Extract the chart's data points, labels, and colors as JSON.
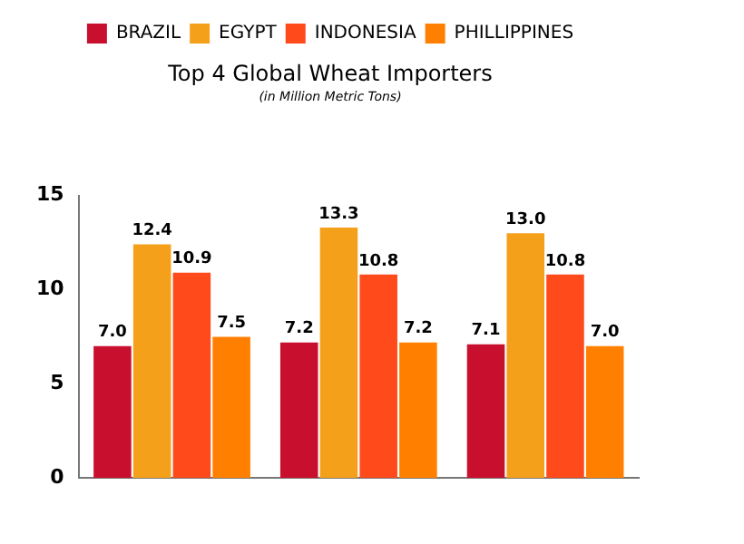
{
  "chart_data": {
    "type": "bar",
    "title": "Top 4 Global Wheat Importers",
    "subtitle": "(in Million Metric Tons)",
    "categories": [
      null,
      null,
      null
    ],
    "series": [
      {
        "name": "BRAZIL",
        "color": "#c8102e",
        "values": [
          7.0,
          7.2,
          7.1
        ],
        "value_labels": [
          "7.0",
          "7.2",
          "7.1"
        ]
      },
      {
        "name": "EGYPT",
        "color": "#f5a01a",
        "values": [
          12.4,
          13.3,
          13.0
        ],
        "value_labels": [
          "12.4",
          "13.3",
          "13.0"
        ]
      },
      {
        "name": "INDONESIA",
        "color": "#ff4a1c",
        "values": [
          10.9,
          10.8,
          10.8
        ],
        "value_labels": [
          "10.9",
          "10.8",
          "10.8"
        ]
      },
      {
        "name": "PHILLIPPINES",
        "color": "#ff8000",
        "values": [
          7.5,
          7.2,
          7.0
        ],
        "value_labels": [
          "7.5",
          "7.2",
          "7.0"
        ]
      }
    ],
    "ylim": [
      0,
      15
    ],
    "yticks": [
      0,
      5,
      10,
      15
    ],
    "grid": false,
    "legend": "top"
  }
}
